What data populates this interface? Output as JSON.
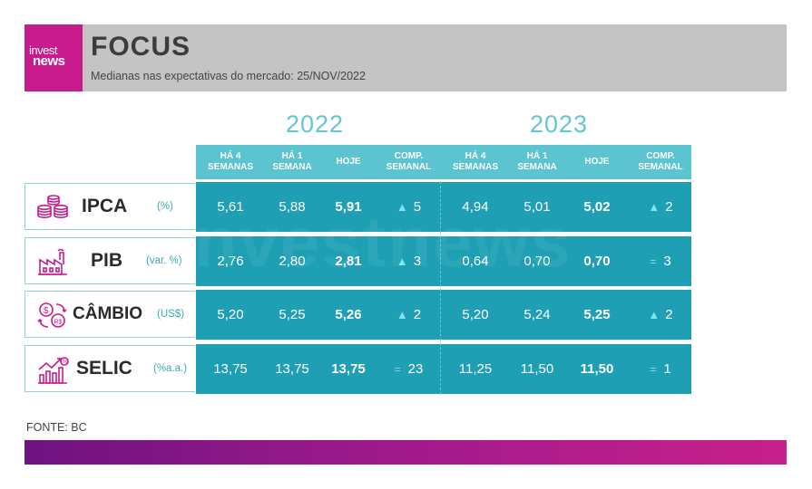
{
  "header": {
    "logo_line1": "invest",
    "logo_line2": "news",
    "title": "FOCUS",
    "subtitle": "Medianas nas expectativas do mercado: 25/NOV/2022"
  },
  "years": [
    "2022",
    "2023"
  ],
  "column_headers": [
    "HÁ 4\nSEMANAS",
    "HÁ 1\nSEMANA",
    "HOJE",
    "COMP.\nSEMANAL",
    "HÁ 4\nSEMANAS",
    "HÁ 1\nSEMANA",
    "HOJE",
    "COMP.\nSEMANAL"
  ],
  "rows": [
    {
      "name": "IPCA",
      "unit": "(%)",
      "icon": "coins-icon",
      "y2022": {
        "h4": "5,61",
        "h1": "5,88",
        "hoje": "5,91",
        "comp_symbol": "▲",
        "comp": "5"
      },
      "y2023": {
        "h4": "4,94",
        "h1": "5,01",
        "hoje": "5,02",
        "comp_symbol": "▲",
        "comp": "2"
      }
    },
    {
      "name": "PIB",
      "unit": "(var. %)",
      "icon": "factory-icon",
      "y2022": {
        "h4": "2,76",
        "h1": "2,80",
        "hoje": "2,81",
        "comp_symbol": "▲",
        "comp": "3"
      },
      "y2023": {
        "h4": "0,64",
        "h1": "0,70",
        "hoje": "0,70",
        "comp_symbol": "=",
        "comp": "3"
      }
    },
    {
      "name": "CÂMBIO",
      "unit": "(US$)",
      "icon": "currency-exchange-icon",
      "y2022": {
        "h4": "5,20",
        "h1": "5,25",
        "hoje": "5,26",
        "comp_symbol": "▲",
        "comp": "2"
      },
      "y2023": {
        "h4": "5,20",
        "h1": "5,24",
        "hoje": "5,25",
        "comp_symbol": "▲",
        "comp": "2"
      }
    },
    {
      "name": "SELIC",
      "unit": "(%a.a.)",
      "icon": "rate-chart-icon",
      "y2022": {
        "h4": "13,75",
        "h1": "13,75",
        "hoje": "13,75",
        "comp_symbol": "=",
        "comp": "23"
      },
      "y2023": {
        "h4": "11,25",
        "h1": "11,50",
        "hoje": "11,50",
        "comp_symbol": "=",
        "comp": "1"
      }
    }
  ],
  "watermark": "investnews",
  "source": "FONTE: BC",
  "colors": {
    "brand_magenta": "#c81c8c",
    "header_gray": "#c4c4c4",
    "teal_header": "#5cc3d0",
    "teal_row": "#1e9fb3",
    "year_text": "#62c6d3",
    "gradient_start": "#6e1380",
    "gradient_end": "#c8208a"
  }
}
